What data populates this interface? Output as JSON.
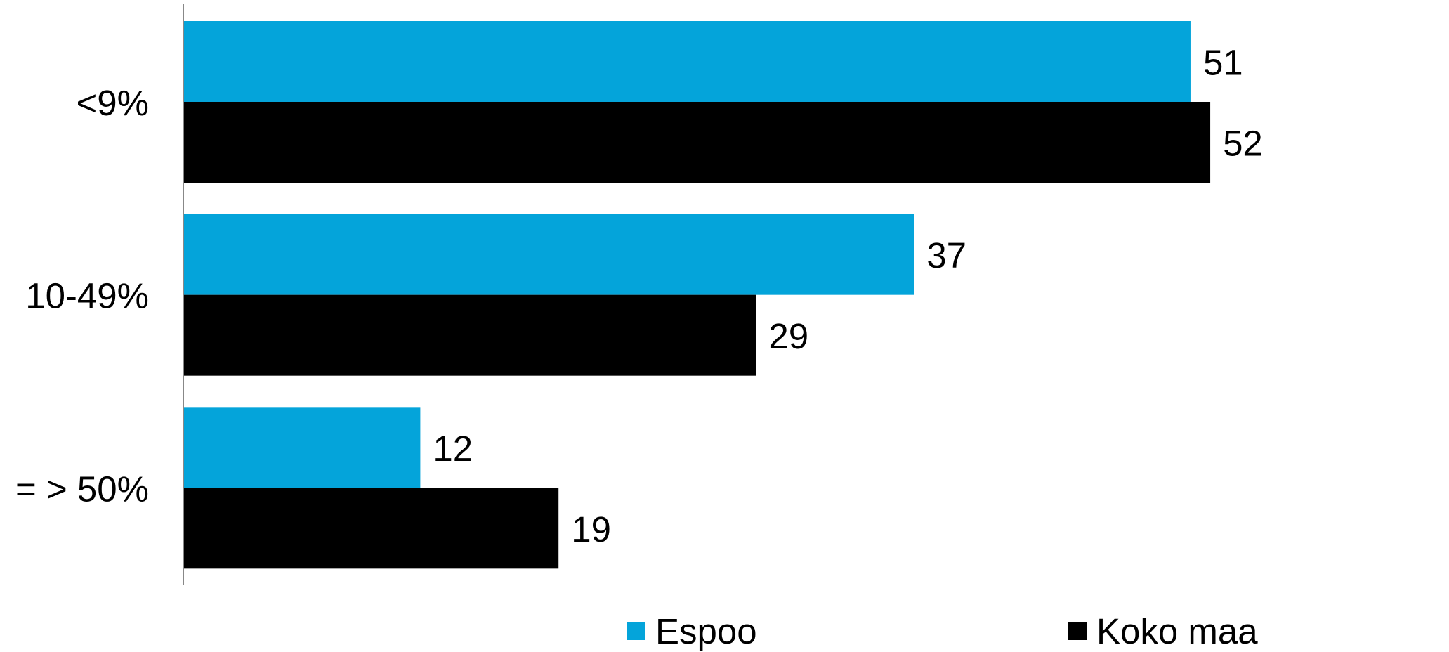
{
  "chart_data": {
    "type": "bar",
    "orientation": "horizontal",
    "categories": [
      "<9%",
      "10-49%",
      "= > 50%"
    ],
    "series": [
      {
        "name": "Espoo",
        "color": "#04A4DA",
        "values": [
          51,
          37,
          12
        ]
      },
      {
        "name": "Koko maa",
        "color": "#000000",
        "values": [
          52,
          29,
          19
        ]
      }
    ],
    "xlim": [
      0,
      60
    ],
    "grid": false,
    "data_labels": true,
    "legend_position": "bottom"
  }
}
